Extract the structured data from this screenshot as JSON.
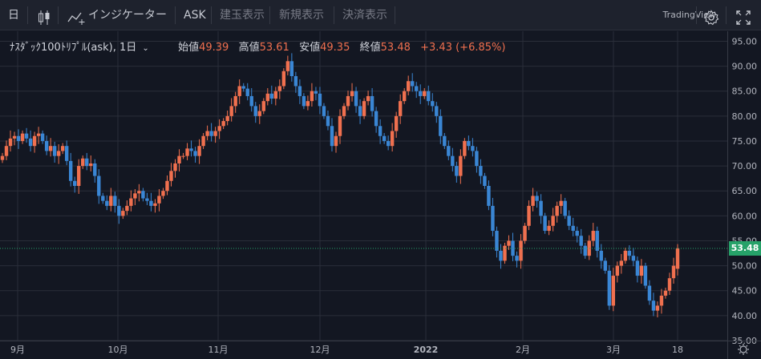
{
  "toolbar": {
    "interval": "日",
    "indicators_label": "インジケーター",
    "ask_label": "ASK",
    "buttons": [
      "建玉表示",
      "新規表示",
      "決済表示"
    ],
    "brand": "TradingView"
  },
  "legend": {
    "symbol": "ﾅｽﾀﾞｯｸ100ﾄﾘﾌﾟﾙ(ask), 1日",
    "open_label": "始値",
    "open": "49.39",
    "high_label": "高値",
    "high": "53.61",
    "low_label": "安値",
    "low": "49.35",
    "close_label": "終値",
    "close": "53.48",
    "change": "+3.43 (+6.85%)"
  },
  "price_axis": {
    "ticks": [
      "95.00",
      "90.00",
      "85.00",
      "80.00",
      "75.00",
      "70.00",
      "65.00",
      "60.00",
      "55.00",
      "50.00",
      "45.00",
      "40.00",
      "35.00"
    ],
    "current": "53.48"
  },
  "time_axis": {
    "labels": [
      "9月",
      "10月",
      "11月",
      "12月",
      "2022",
      "2月",
      "3月",
      "18"
    ]
  },
  "colors": {
    "up": "#f0704f",
    "down": "#3a86d4",
    "bg": "#131722",
    "grid": "#2a2e39",
    "last": "#26a269"
  },
  "chart_data": {
    "type": "candlestick",
    "ylim": [
      35,
      97
    ],
    "closes": [
      72,
      74,
      75.5,
      76,
      75,
      76.5,
      75.5,
      74,
      76,
      76.5,
      75,
      73,
      74,
      72,
      73,
      74,
      71,
      67,
      66,
      70,
      71.5,
      70,
      70.5,
      68,
      64,
      63,
      62,
      64,
      62,
      60,
      61,
      62,
      63.5,
      64.5,
      65,
      63.5,
      63,
      62,
      62.5,
      64,
      65,
      67,
      69,
      70.5,
      72,
      72,
      73.5,
      73,
      72,
      74,
      76,
      77,
      76,
      77,
      78,
      79,
      80,
      82,
      84,
      86,
      85.5,
      84,
      82,
      80,
      81,
      83,
      84.5,
      83.5,
      85,
      86,
      89,
      91,
      88,
      86,
      84,
      82,
      83,
      85,
      84.5,
      82,
      80,
      78,
      74,
      76,
      80,
      82,
      84,
      85,
      82,
      80,
      83,
      84,
      81,
      78,
      76,
      75,
      74,
      77,
      80,
      83,
      85,
      87,
      86,
      85,
      84,
      85,
      83,
      82,
      80,
      76,
      74,
      72,
      70,
      68,
      72,
      75,
      74,
      73,
      70,
      68,
      66,
      62,
      57,
      53,
      51,
      54,
      55,
      52,
      51,
      55,
      58,
      62,
      64,
      63,
      60,
      57,
      58,
      60,
      62,
      63,
      60,
      58,
      57,
      56,
      54,
      52,
      55,
      57,
      53,
      51,
      49,
      42,
      48,
      50,
      51,
      53,
      52,
      51,
      48,
      50,
      46,
      43,
      41,
      42,
      44,
      45,
      47.5,
      50,
      53.48
    ]
  }
}
